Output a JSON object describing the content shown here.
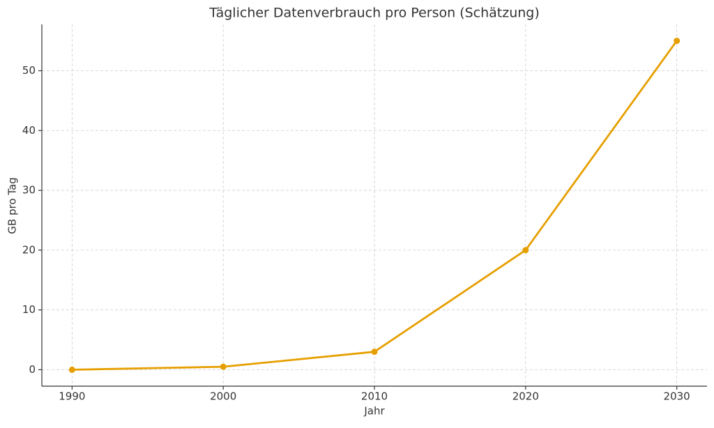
{
  "chart_data": {
    "type": "line",
    "title": "Täglicher Datenverbrauch pro Person (Schätzung)",
    "x_label": "Jahr",
    "y_label": "GB pro Tag",
    "x": [
      1990,
      2000,
      2010,
      2020,
      2030
    ],
    "series": [
      {
        "name": "GB pro Tag",
        "color": "#e69f00",
        "values": [
          0,
          0.5,
          3,
          20,
          55
        ]
      }
    ],
    "xlim": [
      1988,
      2032
    ],
    "xticks": [
      1990,
      2000,
      2010,
      2020,
      2030
    ],
    "ylim": [
      -2.75,
      57.75
    ],
    "yticks": [
      0,
      10,
      20,
      30,
      40,
      50
    ],
    "grid": true
  }
}
